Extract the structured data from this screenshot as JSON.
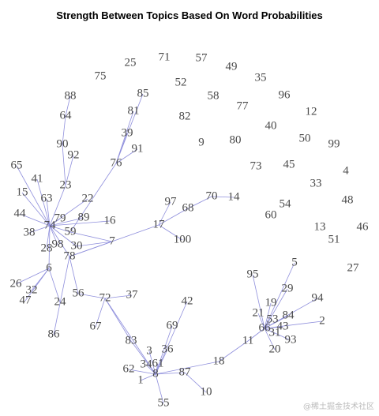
{
  "title": "Strength Between Topics Based On Word Probabilities",
  "nodes": [
    "25",
    "71",
    "57",
    "49",
    "75",
    "52",
    "35",
    "85",
    "58",
    "77",
    "96",
    "88",
    "81",
    "82",
    "12",
    "64",
    "40",
    "39",
    "9",
    "80",
    "50",
    "99",
    "90",
    "91",
    "92",
    "76",
    "73",
    "45",
    "4",
    "65",
    "41",
    "33",
    "23",
    "15",
    "63",
    "97",
    "70",
    "14",
    "22",
    "48",
    "68",
    "54",
    "60",
    "44",
    "79",
    "89",
    "16",
    "74",
    "17",
    "13",
    "46",
    "38",
    "59",
    "51",
    "100",
    "7",
    "28",
    "98",
    "30",
    "78",
    "5",
    "6",
    "27",
    "95",
    "26",
    "32",
    "29",
    "56",
    "47",
    "72",
    "37",
    "94",
    "24",
    "19",
    "42",
    "21",
    "84",
    "2",
    "53",
    "43",
    "66",
    "67",
    "69",
    "31",
    "93",
    "86",
    "11",
    "83",
    "20",
    "36",
    "3",
    "18",
    "62",
    "34",
    "61",
    "8",
    "87",
    "1",
    "10",
    "55"
  ],
  "watermark": "@稀土掘金技术社区"
}
